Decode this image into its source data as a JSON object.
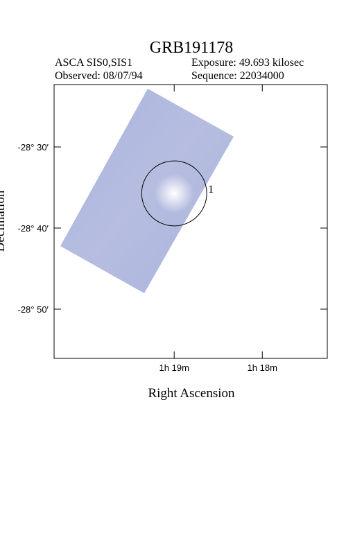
{
  "chart_data": {
    "type": "image",
    "title": "GRB191178",
    "header": {
      "instrument": "ASCA SIS0,SIS1",
      "exposure": "Exposure: 49.693 kilosec",
      "observed": "Observed: 08/07/94",
      "sequence": "Sequence: 22034000"
    },
    "x_label": "Right Ascension",
    "y_label": "Declination",
    "xlim": [
      1.3394,
      1.2877
    ],
    "ylim": [
      -28.9345,
      -28.3718
    ],
    "xticks": [
      {
        "value": 1.31667,
        "label": "1h 19m"
      },
      {
        "value": 1.3,
        "label": "1h 18m"
      }
    ],
    "yticks": [
      {
        "value": -28.5,
        "label": "-28° 30′"
      },
      {
        "value": -28.66667,
        "label": "-28° 40′"
      },
      {
        "value": -28.83333,
        "label": "-28° 50′"
      }
    ],
    "sources": [
      {
        "label": "1",
        "ra": 1.31667,
        "dec": -28.5954,
        "radius": 0.0668
      }
    ]
  }
}
